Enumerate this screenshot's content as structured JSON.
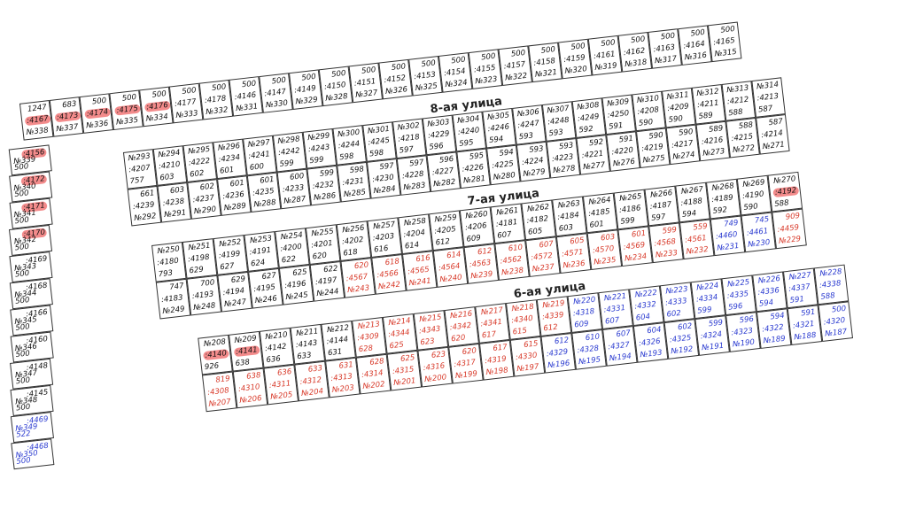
{
  "streets": [
    "8-ая улица",
    "7-ая улица",
    "6-ая улица"
  ],
  "rows": [
    {
      "cells": [
        {
          "area": 1247,
          "code": ":4167",
          "no": "№338",
          "highlight": true
        },
        {
          "area": 683,
          "code": ":4173",
          "no": "№337",
          "highlight": true
        },
        {
          "area": 500,
          "code": ":4174",
          "no": "№336",
          "highlight": true
        },
        {
          "area": 500,
          "code": ":4175",
          "no": "№335",
          "highlight": true
        },
        {
          "area": 500,
          "code": ":4176",
          "no": "№334",
          "highlight": true
        },
        {
          "area": 500,
          "code": ":4177",
          "no": "№333"
        },
        {
          "area": 500,
          "code": ":4178",
          "no": "№332"
        },
        {
          "area": 500,
          "code": ":4146",
          "no": "№331"
        },
        {
          "area": 500,
          "code": ":4147",
          "no": "№330"
        },
        {
          "area": 500,
          "code": ":4149",
          "no": "№329"
        },
        {
          "area": 500,
          "code": ":4150",
          "no": "№328"
        },
        {
          "area": 500,
          "code": ":4151",
          "no": "№327"
        },
        {
          "area": 500,
          "code": ":4152",
          "no": "№326"
        },
        {
          "area": 500,
          "code": ":4153",
          "no": "№325"
        },
        {
          "area": 500,
          "code": ":4154",
          "no": "№324"
        },
        {
          "area": 500,
          "code": ":4155",
          "no": "№323"
        },
        {
          "area": 500,
          "code": ":4157",
          "no": "№322"
        },
        {
          "area": 500,
          "code": ":4158",
          "no": "№321"
        },
        {
          "area": 500,
          "code": ":4159",
          "no": "№320"
        },
        {
          "area": 500,
          "code": ":4161",
          "no": "№319"
        },
        {
          "area": 500,
          "code": ":4162",
          "no": "№318"
        },
        {
          "area": 500,
          "code": ":4163",
          "no": "№317"
        },
        {
          "area": 500,
          "code": ":4164",
          "no": "№316"
        },
        {
          "area": 500,
          "code": ":4165",
          "no": "№315"
        }
      ]
    },
    {
      "cells": [
        {
          "no": "№293",
          "code": ":4207",
          "area": 757
        },
        {
          "no": "№294",
          "code": ":4210",
          "area": 603
        },
        {
          "no": "№295",
          "code": ":4222",
          "area": 602
        },
        {
          "no": "№296",
          "code": ":4234",
          "area": 601
        },
        {
          "no": "№297",
          "code": ":4241",
          "area": 600
        },
        {
          "no": "№298",
          "code": ":4242",
          "area": 599
        },
        {
          "no": "№299",
          "code": ":4243",
          "area": 599
        },
        {
          "no": "№300",
          "code": ":4244",
          "area": 598
        },
        {
          "no": "№301",
          "code": ":4245",
          "area": 598
        },
        {
          "no": "№302",
          "code": ":4218",
          "area": 597
        },
        {
          "no": "№303",
          "code": ":4229",
          "area": 596
        },
        {
          "no": "№304",
          "code": ":4240",
          "area": 595
        },
        {
          "no": "№305",
          "code": ":4246",
          "area": 594
        },
        {
          "no": "№306",
          "code": ":4247",
          "area": 593
        },
        {
          "no": "№307",
          "code": ":4248",
          "area": 593
        },
        {
          "no": "№308",
          "code": ":4249",
          "area": 592
        },
        {
          "no": "№309",
          "code": ":4250",
          "area": 591
        },
        {
          "no": "№310",
          "code": ":4208",
          "area": 590
        },
        {
          "no": "№311",
          "code": ":4209",
          "area": 590
        },
        {
          "no": "№312",
          "code": ":4211",
          "area": 589
        },
        {
          "no": "№313",
          "code": ":4212",
          "area": 588
        },
        {
          "no": "№314",
          "code": ":4213",
          "area": 587
        }
      ]
    },
    {
      "cells": [
        {
          "area": 661,
          "code": ":4239",
          "no": "№292"
        },
        {
          "area": 603,
          "code": ":4238",
          "no": "№291"
        },
        {
          "area": 602,
          "code": ":4237",
          "no": "№290"
        },
        {
          "area": 601,
          "code": ":4236",
          "no": "№289"
        },
        {
          "area": 601,
          "code": ":4235",
          "no": "№288"
        },
        {
          "area": 600,
          "code": ":4233",
          "no": "№287"
        },
        {
          "area": 599,
          "code": ":4232",
          "no": "№286"
        },
        {
          "area": 598,
          "code": ":4231",
          "no": "№285"
        },
        {
          "area": 597,
          "code": ":4230",
          "no": "№284"
        },
        {
          "area": 597,
          "code": ":4228",
          "no": "№283"
        },
        {
          "area": 596,
          "code": ":4227",
          "no": "№282"
        },
        {
          "area": 595,
          "code": ":4226",
          "no": "№281"
        },
        {
          "area": 594,
          "code": ":4225",
          "no": "№280"
        },
        {
          "area": 593,
          "code": ":4224",
          "no": "№279"
        },
        {
          "area": 593,
          "code": ":4223",
          "no": "№278"
        },
        {
          "area": 592,
          "code": ":4221",
          "no": "№277"
        },
        {
          "area": 591,
          "code": ":4220",
          "no": "№276"
        },
        {
          "area": 590,
          "code": ":4219",
          "no": "№275"
        },
        {
          "area": 590,
          "code": ":4217",
          "no": "№274"
        },
        {
          "area": 589,
          "code": ":4216",
          "no": "№273"
        },
        {
          "area": 588,
          "code": ":4215",
          "no": "№272"
        },
        {
          "area": 587,
          "code": ":4214",
          "no": "№271"
        }
      ]
    },
    {
      "cells": [
        {
          "no": "№250",
          "code": ":4180",
          "area": 793
        },
        {
          "no": "№251",
          "code": ":4198",
          "area": 629
        },
        {
          "no": "№252",
          "code": ":4199",
          "area": 627
        },
        {
          "no": "№253",
          "code": ":4191",
          "area": 624
        },
        {
          "no": "№254",
          "code": ":4200",
          "area": 622
        },
        {
          "no": "№255",
          "code": ":4201",
          "area": 620
        },
        {
          "no": "№256",
          "code": ":4202",
          "area": 618
        },
        {
          "no": "№257",
          "code": ":4203",
          "area": 616
        },
        {
          "no": "№258",
          "code": ":4204",
          "area": 614
        },
        {
          "no": "№259",
          "code": ":4205",
          "area": 612
        },
        {
          "no": "№260",
          "code": ":4206",
          "area": 609
        },
        {
          "no": "№261",
          "code": ":4181",
          "area": 607
        },
        {
          "no": "№262",
          "code": ":4182",
          "area": 605
        },
        {
          "no": "№263",
          "code": ":4184",
          "area": 603
        },
        {
          "no": "№264",
          "code": ":4185",
          "area": 601
        },
        {
          "no": "№265",
          "code": ":4186",
          "area": 599
        },
        {
          "no": "№266",
          "code": ":4187",
          "area": 597
        },
        {
          "no": "№267",
          "code": ":4188",
          "area": 594
        },
        {
          "no": "№268",
          "code": ":4189",
          "area": 592
        },
        {
          "no": "№269",
          "code": ":4190",
          "area": 590
        },
        {
          "no": "№270",
          "code": ":4192",
          "area": 588,
          "highlight": true
        }
      ]
    },
    {
      "cells": [
        {
          "area": 747,
          "code": ":4183",
          "no": "№249"
        },
        {
          "area": 700,
          "code": ":4193",
          "no": "№248"
        },
        {
          "area": 629,
          "code": ":4194",
          "no": "№247"
        },
        {
          "area": 627,
          "code": ":4195",
          "no": "№246"
        },
        {
          "area": 625,
          "code": ":4196",
          "no": "№245"
        },
        {
          "area": 622,
          "code": ":4197",
          "no": "№244"
        },
        {
          "area": 620,
          "code": ":4567",
          "no": "№243",
          "color": "#d83a2a"
        },
        {
          "area": 618,
          "code": ":4566",
          "no": "№242",
          "color": "#d83a2a"
        },
        {
          "area": 616,
          "code": ":4565",
          "no": "№241",
          "color": "#d83a2a"
        },
        {
          "area": 614,
          "code": ":4564",
          "no": "№240",
          "color": "#d83a2a"
        },
        {
          "area": 612,
          "code": ":4563",
          "no": "№239",
          "color": "#d83a2a"
        },
        {
          "area": 610,
          "code": ":4562",
          "no": "№238",
          "color": "#d83a2a"
        },
        {
          "area": 607,
          "code": ":4572",
          "no": "№237",
          "color": "#d83a2a"
        },
        {
          "area": 605,
          "code": ":4571",
          "no": "№236",
          "color": "#d83a2a"
        },
        {
          "area": 603,
          "code": ":4570",
          "no": "№235",
          "color": "#d83a2a"
        },
        {
          "area": 601,
          "code": ":4569",
          "no": "№234",
          "color": "#d83a2a"
        },
        {
          "area": 599,
          "code": ":4568",
          "no": "№233",
          "color": "#d83a2a"
        },
        {
          "area": 559,
          "code": ":4561",
          "no": "№232",
          "color": "#d83a2a"
        },
        {
          "area": 749,
          "code": ":4460",
          "no": "№231",
          "color": "#2a3ad0"
        },
        {
          "area": 745,
          "code": ":4461",
          "no": "№230",
          "color": "#2a3ad0"
        },
        {
          "area": 909,
          "code": ":4459",
          "no": "№229",
          "color": "#d83a2a"
        }
      ]
    },
    {
      "cells": [
        {
          "no": "№208",
          "code": ":4140",
          "area": 926,
          "highlight": true
        },
        {
          "no": "№209",
          "code": ":4141",
          "area": 638,
          "highlight": true
        },
        {
          "no": "№210",
          "code": ":4142",
          "area": 636
        },
        {
          "no": "№211",
          "code": ":4143",
          "area": 633
        },
        {
          "no": "№212",
          "code": ":4144",
          "area": 631
        },
        {
          "no": "№213",
          "code": ":4309",
          "area": 628,
          "color": "#d83a2a"
        },
        {
          "no": "№214",
          "code": ":4344",
          "area": 625,
          "color": "#d83a2a"
        },
        {
          "no": "№215",
          "code": ":4343",
          "area": 623,
          "color": "#d83a2a"
        },
        {
          "no": "№216",
          "code": ":4342",
          "area": 620,
          "color": "#d83a2a"
        },
        {
          "no": "№217",
          "code": ":4341",
          "area": 617,
          "color": "#d83a2a"
        },
        {
          "no": "№218",
          "code": ":4340",
          "area": 615,
          "color": "#d83a2a"
        },
        {
          "no": "№219",
          "code": ":4339",
          "area": 612,
          "color": "#d83a2a"
        },
        {
          "no": "№220",
          "code": ":4318",
          "area": 609,
          "color": "#2a3ad0"
        },
        {
          "no": "№221",
          "code": ":4331",
          "area": 607,
          "color": "#2a3ad0"
        },
        {
          "no": "№222",
          "code": ":4332",
          "area": 604,
          "color": "#2a3ad0"
        },
        {
          "no": "№223",
          "code": ":4333",
          "area": 602,
          "color": "#2a3ad0"
        },
        {
          "no": "№224",
          "code": ":4334",
          "area": 599,
          "color": "#2a3ad0"
        },
        {
          "no": "№225",
          "code": ":4335",
          "area": 596,
          "color": "#2a3ad0"
        },
        {
          "no": "№226",
          "code": ":4336",
          "area": 594,
          "color": "#2a3ad0"
        },
        {
          "no": "№227",
          "code": ":4337",
          "area": 591,
          "color": "#2a3ad0"
        },
        {
          "no": "№228",
          "code": ":4338",
          "area": 588,
          "color": "#2a3ad0"
        }
      ]
    },
    {
      "cells": [
        {
          "area": 819,
          "code": ":4308",
          "no": "№207",
          "color": "#d83a2a"
        },
        {
          "area": 638,
          "code": ":4310",
          "no": "№206",
          "color": "#d83a2a"
        },
        {
          "area": 636,
          "code": ":4311",
          "no": "№205",
          "color": "#d83a2a"
        },
        {
          "area": 633,
          "code": ":4312",
          "no": "№204",
          "color": "#d83a2a"
        },
        {
          "area": 631,
          "code": ":4313",
          "no": "№203",
          "color": "#d83a2a"
        },
        {
          "area": 628,
          "code": ":4314",
          "no": "№202",
          "color": "#d83a2a"
        },
        {
          "area": 625,
          "code": ":4315",
          "no": "№201",
          "color": "#d83a2a"
        },
        {
          "area": 623,
          "code": ":4316",
          "no": "№200",
          "color": "#d83a2a"
        },
        {
          "area": 620,
          "code": ":4317",
          "no": "№199",
          "color": "#d83a2a"
        },
        {
          "area": 617,
          "code": ":4319",
          "no": "№198",
          "color": "#d83a2a"
        },
        {
          "area": 615,
          "code": ":4330",
          "no": "№197",
          "color": "#d83a2a"
        },
        {
          "area": 612,
          "code": ":4329",
          "no": "№196",
          "color": "#2a3ad0"
        },
        {
          "area": 610,
          "code": ":4328",
          "no": "№195",
          "color": "#2a3ad0"
        },
        {
          "area": 607,
          "code": ":4327",
          "no": "№194",
          "color": "#2a3ad0"
        },
        {
          "area": 604,
          "code": ":4326",
          "no": "№193",
          "color": "#2a3ad0"
        },
        {
          "area": 602,
          "code": ":4325",
          "no": "№192",
          "color": "#2a3ad0"
        },
        {
          "area": 599,
          "code": ":4324",
          "no": "№191",
          "color": "#2a3ad0"
        },
        {
          "area": 596,
          "code": ":4323",
          "no": "№190",
          "color": "#2a3ad0"
        },
        {
          "area": 594,
          "code": ":4322",
          "no": "№189",
          "color": "#2a3ad0"
        },
        {
          "area": 591,
          "code": ":4321",
          "no": "№188",
          "color": "#2a3ad0"
        },
        {
          "area": 500,
          "code": ":4320",
          "no": "№187",
          "color": "#2a3ad0"
        }
      ]
    }
  ],
  "left_column": [
    {
      "code": ":4156",
      "no": "№339",
      "area": 500,
      "highlight": true
    },
    {
      "code": ":4172",
      "no": "№340",
      "area": 500,
      "highlight": true
    },
    {
      "code": ":4171",
      "no": "№341",
      "area": 500,
      "highlight": true
    },
    {
      "code": ":4170",
      "no": "№342",
      "area": 500,
      "highlight": true
    },
    {
      "code": ":4169",
      "no": "№343",
      "area": 500
    },
    {
      "code": ":4168",
      "no": "№344",
      "area": 500
    },
    {
      "code": ":4166",
      "no": "№345",
      "area": 500
    },
    {
      "code": ":4160",
      "no": "№346",
      "area": 500
    },
    {
      "code": ":4148",
      "no": "№347",
      "area": 500
    },
    {
      "code": ":4145",
      "no": "№348",
      "area": 500
    },
    {
      "code": ":4469",
      "no": "№349",
      "area": 522,
      "color": "#2a3ad0"
    },
    {
      "code": ":4468",
      "no": "№350",
      "area": 500,
      "color": "#2a3ad0"
    }
  ]
}
